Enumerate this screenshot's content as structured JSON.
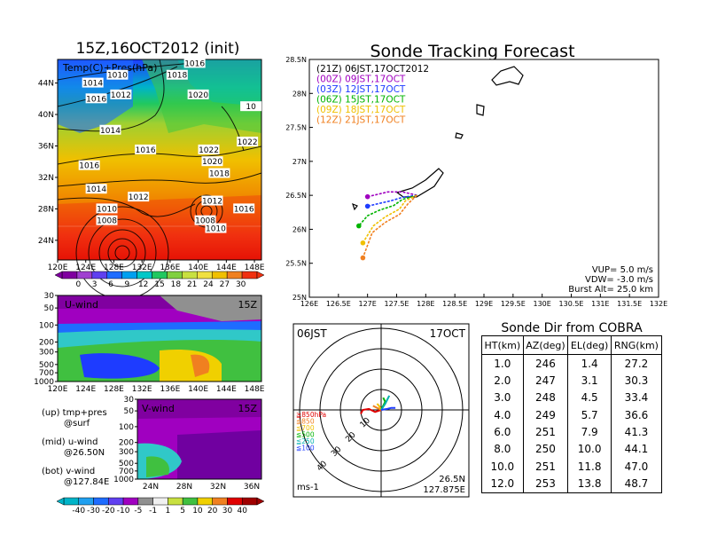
{
  "left_title": "15Z,16OCT2012 (init)",
  "map_label": "Temp(C)+Pres(hPa)",
  "map_lon_ticks": [
    "120E",
    "124E",
    "128E",
    "132E",
    "136E",
    "140E",
    "144E",
    "148E"
  ],
  "map_lat_ticks": [
    "44N",
    "40N",
    "36N",
    "32N",
    "28N",
    "24N"
  ],
  "isobar_labels": [
    {
      "text": "1014",
      "lon": 125.0,
      "lat": 44.0
    },
    {
      "text": "1010",
      "lon": 128.5,
      "lat": 45.0
    },
    {
      "text": "1016",
      "lon": 125.5,
      "lat": 42.0
    },
    {
      "text": "1012",
      "lon": 129.0,
      "lat": 42.5
    },
    {
      "text": "1014",
      "lon": 127.5,
      "lat": 38.0
    },
    {
      "text": "1018",
      "lon": 137.0,
      "lat": 45.0
    },
    {
      "text": "1016",
      "lon": 139.5,
      "lat": 46.5
    },
    {
      "text": "1020",
      "lon": 140.0,
      "lat": 42.5
    },
    {
      "text": "10",
      "lon": 147.5,
      "lat": 41.0
    },
    {
      "text": "1016",
      "lon": 132.5,
      "lat": 35.5
    },
    {
      "text": "1022",
      "lon": 141.5,
      "lat": 35.5
    },
    {
      "text": "1022",
      "lon": 147.0,
      "lat": 36.5
    },
    {
      "text": "1016",
      "lon": 124.5,
      "lat": 33.5
    },
    {
      "text": "1020",
      "lon": 142.0,
      "lat": 34.0
    },
    {
      "text": "1018",
      "lon": 143.0,
      "lat": 32.5
    },
    {
      "text": "1014",
      "lon": 125.5,
      "lat": 30.5
    },
    {
      "text": "1012",
      "lon": 131.5,
      "lat": 29.5
    },
    {
      "text": "1012",
      "lon": 142.0,
      "lat": 29.0
    },
    {
      "text": "1010",
      "lon": 127.0,
      "lat": 28.0
    },
    {
      "text": "1016",
      "lon": 146.5,
      "lat": 28.0
    },
    {
      "text": "1008",
      "lon": 127.0,
      "lat": 26.5
    },
    {
      "text": "1008",
      "lon": 141.0,
      "lat": 26.5
    },
    {
      "text": "1010",
      "lon": 142.5,
      "lat": 25.5
    }
  ],
  "temp_colorbar": [
    "0",
    "3",
    "6",
    "9",
    "12",
    "15",
    "18",
    "21",
    "24",
    "27",
    "30"
  ],
  "uwind_label": "U-wind",
  "uwind_time": "15Z",
  "uwind_levels": [
    "30",
    "50",
    "100",
    "200",
    "300",
    "500",
    "700",
    "1000"
  ],
  "uwind_lon_ticks": [
    "120E",
    "124E",
    "128E",
    "132E",
    "136E",
    "140E",
    "144E",
    "148E"
  ],
  "vwind_label": "V-wind",
  "vwind_time": "15Z",
  "vwind_levels": [
    "30",
    "50",
    "100",
    "200",
    "300",
    "500",
    "700",
    "1000"
  ],
  "vwind_lat_ticks": [
    "24N",
    "28N",
    "32N",
    "36N"
  ],
  "notes": [
    {
      "a": "(up) tmp+pres",
      "b": "@surf"
    },
    {
      "a": "(mid) u-wind",
      "b": "@26.50N"
    },
    {
      "a": "(bot) v-wind",
      "b": "@127.84E"
    }
  ],
  "wind_colorbar": [
    "-40",
    "-30",
    "-20",
    "-10",
    "-5",
    "-1",
    "1",
    "5",
    "10",
    "20",
    "30",
    "40"
  ],
  "right_title": "Sonde Tracking Forecast",
  "track_legend": [
    {
      "text": "(21Z)  06JST,17OCT2012",
      "color": "#000000"
    },
    {
      "text": "(00Z)  09JST,17OCT",
      "color": "#a000c0"
    },
    {
      "text": "(03Z)  12JST,17OCT",
      "color": "#1e3cff"
    },
    {
      "text": "(06Z)  15JST,17OCT",
      "color": "#00b400"
    },
    {
      "text": "(09Z)  18JST,17OCT",
      "color": "#f0c000"
    },
    {
      "text": "(12Z)  21JST,17OCT",
      "color": "#f08020"
    }
  ],
  "track_lat_ticks": [
    "28.5N",
    "28N",
    "27.5N",
    "27N",
    "26.5N",
    "26N",
    "25.5N",
    "25N"
  ],
  "track_lon_ticks": [
    "126E",
    "126.5E",
    "127E",
    "127.5E",
    "128E",
    "128.5E",
    "129E",
    "129.5E",
    "130E",
    "130.5E",
    "131E",
    "131.5E",
    "132E"
  ],
  "track_params": [
    "VUP= 5.0 m/s",
    "VDW= -3.0 m/s",
    "Burst Alt= 25.0 km"
  ],
  "polar": {
    "time_left": "06JST",
    "time_right": "17OCT",
    "ring_labels": [
      "10",
      "20",
      "30",
      "40"
    ],
    "level_labels": [
      {
        "text": "≧850hPa",
        "color": "#e00000"
      },
      {
        "text": "≦850",
        "color": "#f08020"
      },
      {
        "text": "≦700",
        "color": "#f0c000"
      },
      {
        "text": "≦500",
        "color": "#00b400"
      },
      {
        "text": "≦250",
        "color": "#00b0b0"
      },
      {
        "text": "≦100",
        "color": "#1e3cff"
      }
    ],
    "unit": "ms-1",
    "loc_lat": "26.5N",
    "loc_lon": "127.875E"
  },
  "sonde_title": "Sonde Dir from COBRA",
  "sonde_headers": [
    "HT(km)",
    "AZ(deg)",
    "EL(deg)",
    "RNG(km)"
  ],
  "sonde_rows": [
    [
      "1.0",
      "246",
      "1.4",
      "27.2"
    ],
    [
      "2.0",
      "247",
      "3.1",
      "30.3"
    ],
    [
      "3.0",
      "248",
      "4.5",
      "33.4"
    ],
    [
      "4.0",
      "249",
      "5.7",
      "36.6"
    ],
    [
      "6.0",
      "251",
      "7.9",
      "41.3"
    ],
    [
      "8.0",
      "250",
      "10.0",
      "44.1"
    ],
    [
      "10.0",
      "251",
      "11.8",
      "47.0"
    ],
    [
      "12.0",
      "253",
      "13.8",
      "48.7"
    ]
  ],
  "chart_data": [
    {
      "type": "heatmap",
      "title": "15Z,16OCT2012 (init)",
      "annotation": "Temp(C)+Pres(hPa)",
      "xlim": [
        120,
        149
      ],
      "ylim": [
        21.5,
        47
      ],
      "colorbar": [
        0,
        3,
        6,
        9,
        12,
        15,
        18,
        21,
        24,
        27,
        30
      ]
    },
    {
      "type": "heatmap",
      "annotation": "U-wind 15Z",
      "yticks": [
        30,
        50,
        100,
        200,
        300,
        500,
        700,
        1000
      ]
    },
    {
      "type": "heatmap",
      "annotation": "V-wind 15Z",
      "yticks": [
        30,
        50,
        100,
        200,
        300,
        500,
        700,
        1000
      ],
      "colorbar": [
        -40,
        -30,
        -20,
        -10,
        -5,
        -1,
        1,
        5,
        10,
        20,
        30,
        40
      ]
    },
    {
      "type": "line",
      "title": "Sonde Tracking Forecast",
      "xlim": [
        126,
        132
      ],
      "ylim": [
        25,
        28.5
      ],
      "series": [
        {
          "name": "(00Z) 09JST,17OCT",
          "color": "#a000c0",
          "x": [
            127.85,
            127.6,
            127.35,
            127.2,
            127.0
          ],
          "y": [
            26.5,
            26.55,
            26.55,
            26.52,
            26.48
          ]
        },
        {
          "name": "(03Z) 12JST,17OCT",
          "color": "#1e3cff",
          "x": [
            127.85,
            127.6,
            127.4,
            127.2,
            127.0
          ],
          "y": [
            26.5,
            26.47,
            26.42,
            26.38,
            26.34
          ]
        },
        {
          "name": "(06Z) 15JST,17OCT",
          "color": "#00b400",
          "x": [
            127.85,
            127.6,
            127.45,
            127.2,
            127.0,
            126.85
          ],
          "y": [
            26.5,
            26.44,
            26.35,
            26.28,
            26.2,
            26.05
          ]
        },
        {
          "name": "(09Z) 18JST,17OCT",
          "color": "#f0c000",
          "x": [
            127.85,
            127.65,
            127.55,
            127.3,
            127.1,
            126.92
          ],
          "y": [
            26.5,
            26.42,
            26.3,
            26.18,
            26.05,
            25.8
          ]
        },
        {
          "name": "(12Z) 21JST,17OCT",
          "color": "#f08020",
          "x": [
            127.85,
            127.7,
            127.55,
            127.3,
            127.08,
            126.92
          ],
          "y": [
            26.5,
            26.38,
            26.22,
            26.1,
            25.95,
            25.58
          ]
        }
      ]
    },
    {
      "type": "line",
      "title": "06JST 17OCT",
      "rings": [
        10,
        20,
        30,
        40
      ],
      "series": [
        {
          "name": "≧850hPa",
          "color": "#e00000",
          "x": [
            0,
            -3,
            -6,
            -9,
            -10
          ],
          "y": [
            0,
            -1,
            0.5,
            0,
            -2
          ]
        },
        {
          "name": "≦850",
          "color": "#f08020",
          "x": [
            0,
            -2,
            -4
          ],
          "y": [
            0,
            1,
            2
          ]
        },
        {
          "name": "≦700",
          "color": "#f0c000",
          "x": [
            0,
            -1,
            -2
          ],
          "y": [
            0,
            2,
            3
          ]
        },
        {
          "name": "≦500",
          "color": "#00b400",
          "x": [
            0,
            1,
            2,
            1
          ],
          "y": [
            0,
            2,
            4,
            6
          ]
        },
        {
          "name": "≦250",
          "color": "#00b0b0",
          "x": [
            0,
            2,
            3,
            4
          ],
          "y": [
            0,
            3,
            5,
            7
          ]
        },
        {
          "name": "≦100",
          "color": "#1e3cff",
          "x": [
            0,
            3,
            5,
            7
          ],
          "y": [
            0,
            0.5,
            1,
            1
          ]
        }
      ]
    },
    {
      "type": "table",
      "title": "Sonde Dir from COBRA",
      "columns": [
        "HT(km)",
        "AZ(deg)",
        "EL(deg)",
        "RNG(km)"
      ],
      "rows": [
        [
          1.0,
          246,
          1.4,
          27.2
        ],
        [
          2.0,
          247,
          3.1,
          30.3
        ],
        [
          3.0,
          248,
          4.5,
          33.4
        ],
        [
          4.0,
          249,
          5.7,
          36.6
        ],
        [
          6.0,
          251,
          7.9,
          41.3
        ],
        [
          8.0,
          250,
          10.0,
          44.1
        ],
        [
          10.0,
          251,
          11.8,
          47.0
        ],
        [
          12.0,
          253,
          13.8,
          48.7
        ]
      ]
    }
  ]
}
